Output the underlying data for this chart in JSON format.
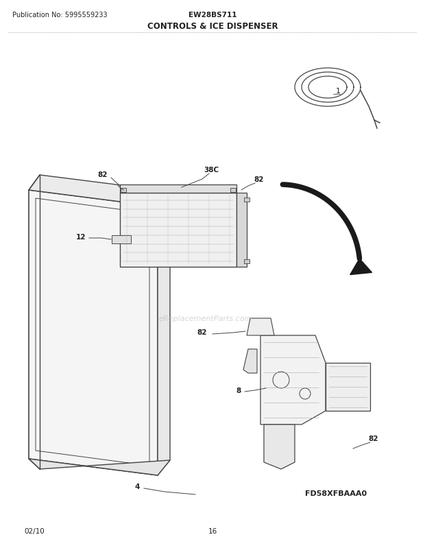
{
  "title_left": "Publication No: 5995559233",
  "title_center": "EW28BS711",
  "title_section": "CONTROLS & ICE DISPENSER",
  "diagram_code": "FD58XFBAAA0",
  "date": "02/10",
  "page": "16",
  "bg_color": "#ffffff",
  "line_color": "#444444",
  "text_color": "#222222",
  "watermark": "eReplacementParts.com"
}
